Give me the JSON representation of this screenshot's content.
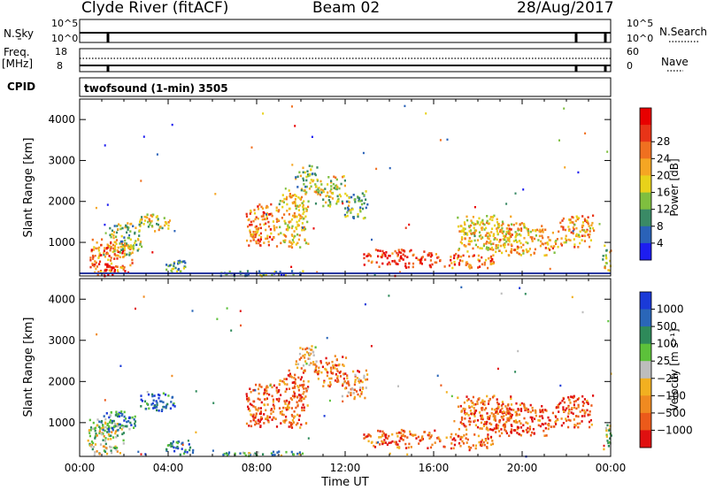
{
  "header": {
    "station": "Clyde River (fitACF)",
    "beam": "Beam 02",
    "date": "28/Aug/2017"
  },
  "top_panels": {
    "nsky_label": "N.Sky",
    "nsky_ticks": [
      "10^5",
      "10^0"
    ],
    "nsearch_label": "N.Search",
    "nsearch_ticks": [
      "10^5",
      "10^0"
    ],
    "freq_label": "Freq.",
    "freq_unit": "[MHz]",
    "freq_ticks": [
      "18",
      "8"
    ],
    "nave_label": "Nave",
    "nave_ticks": [
      "60",
      "0"
    ],
    "cpid_label": "CPID",
    "cpid_value": "twofsound (1-min) 3505"
  },
  "chart_data": [
    {
      "type": "heatmap",
      "name": "power",
      "ylabel": "Slant Range [km]",
      "y_ticks": [
        "1000",
        "2000",
        "3000",
        "4000"
      ],
      "ylim": [
        180,
        4500
      ],
      "xlim": [
        0,
        24
      ],
      "colorbar_label": "Power [dB]",
      "colorbar_ticks": [
        "4",
        "8",
        "12",
        "16",
        "20",
        "24",
        "28"
      ],
      "colors": [
        "#1d1df0",
        "#2a62b8",
        "#3a8a66",
        "#7fbf3f",
        "#e8d21a",
        "#f5a623",
        "#f07020",
        "#e83418",
        "#e80000"
      ],
      "patches": [
        {
          "t": 0.4,
          "t2": 2.4,
          "r": 200,
          "r2": 1100,
          "lvl": 0.75
        },
        {
          "t": 0.9,
          "t2": 1.6,
          "r": 200,
          "r2": 500,
          "lvl": 0.95
        },
        {
          "t": 1.2,
          "t2": 2.8,
          "r": 700,
          "r2": 1500,
          "lvl": 0.4
        },
        {
          "t": 2.6,
          "t2": 4.1,
          "r": 1300,
          "r2": 1750,
          "lvl": 0.5
        },
        {
          "t": 3.8,
          "t2": 4.8,
          "r": 250,
          "r2": 600,
          "lvl": 0.35
        },
        {
          "t": 6.3,
          "t2": 10.2,
          "r": 200,
          "r2": 330,
          "lvl": 0.3
        },
        {
          "t": 7.5,
          "t2": 8.8,
          "r": 900,
          "r2": 2000,
          "lvl": 0.7
        },
        {
          "t": 8.8,
          "t2": 10.3,
          "r": 900,
          "r2": 2300,
          "lvl": 0.55
        },
        {
          "t": 9.7,
          "t2": 10.7,
          "r": 2200,
          "r2": 2900,
          "lvl": 0.4
        },
        {
          "t": 10.6,
          "t2": 12.0,
          "r": 1900,
          "r2": 2650,
          "lvl": 0.45
        },
        {
          "t": 11.8,
          "t2": 13.0,
          "r": 1600,
          "r2": 2300,
          "lvl": 0.35
        },
        {
          "t": 12.8,
          "t2": 16.3,
          "r": 400,
          "r2": 850,
          "lvl": 0.85
        },
        {
          "t": 16.4,
          "t2": 18.7,
          "r": 380,
          "r2": 750,
          "lvl": 0.75
        },
        {
          "t": 17.0,
          "t2": 19.5,
          "r": 800,
          "r2": 1700,
          "lvl": 0.55
        },
        {
          "t": 18.3,
          "t2": 21.6,
          "r": 700,
          "r2": 1500,
          "lvl": 0.6
        },
        {
          "t": 21.5,
          "t2": 23.2,
          "r": 900,
          "r2": 1700,
          "lvl": 0.65
        },
        {
          "t": 23.6,
          "t2": 24.0,
          "r": 300,
          "r2": 1000,
          "lvl": 0.5
        }
      ]
    },
    {
      "type": "heatmap",
      "name": "velocity",
      "ylabel": "Slant Range [km]",
      "xlabel": "Time UT",
      "x_ticks": [
        "00:00",
        "04:00",
        "08:00",
        "12:00",
        "16:00",
        "20:00",
        "00:00"
      ],
      "y_ticks": [
        "1000",
        "2000",
        "3000",
        "4000"
      ],
      "ylim": [
        180,
        4500
      ],
      "xlim": [
        0,
        24
      ],
      "colorbar_label": "Velocity [m s⁻¹]",
      "colorbar_ticks": [
        "1000",
        "500",
        "100",
        "25",
        "−25",
        "−100",
        "−500",
        "−1000"
      ],
      "colors": [
        "#1a3ad8",
        "#2a66b8",
        "#2e8a5a",
        "#5cc13a",
        "#bdbdbd",
        "#f2b020",
        "#f08a20",
        "#ec5a1a",
        "#e01010"
      ],
      "patches": [
        {
          "t": 0.3,
          "t2": 2.0,
          "r": 200,
          "r2": 1100,
          "lvl": 0.5
        },
        {
          "t": 0.8,
          "t2": 2.6,
          "r": 800,
          "r2": 1300,
          "lvl": 0.25
        },
        {
          "t": 2.6,
          "t2": 4.3,
          "r": 1300,
          "r2": 1750,
          "lvl": 0.15
        },
        {
          "t": 3.8,
          "t2": 5.2,
          "r": 250,
          "r2": 600,
          "lvl": 0.2
        },
        {
          "t": 6.3,
          "t2": 10.2,
          "r": 200,
          "r2": 330,
          "lvl": 0.35
        },
        {
          "t": 7.5,
          "t2": 8.8,
          "r": 900,
          "r2": 2000,
          "lvl": 0.85
        },
        {
          "t": 8.8,
          "t2": 10.3,
          "r": 900,
          "r2": 2300,
          "lvl": 0.8
        },
        {
          "t": 9.7,
          "t2": 10.7,
          "r": 2200,
          "r2": 2900,
          "lvl": 0.6
        },
        {
          "t": 10.6,
          "t2": 12.0,
          "r": 1900,
          "r2": 2650,
          "lvl": 0.8
        },
        {
          "t": 11.8,
          "t2": 13.0,
          "r": 1600,
          "r2": 2300,
          "lvl": 0.7
        },
        {
          "t": 12.8,
          "t2": 16.3,
          "r": 400,
          "r2": 850,
          "lvl": 0.82
        },
        {
          "t": 16.4,
          "t2": 18.7,
          "r": 380,
          "r2": 750,
          "lvl": 0.8
        },
        {
          "t": 17.0,
          "t2": 19.5,
          "r": 800,
          "r2": 1700,
          "lvl": 0.82
        },
        {
          "t": 18.3,
          "t2": 21.6,
          "r": 700,
          "r2": 1500,
          "lvl": 0.85
        },
        {
          "t": 21.5,
          "t2": 23.2,
          "r": 900,
          "r2": 1700,
          "lvl": 0.85
        },
        {
          "t": 23.6,
          "t2": 24.0,
          "r": 300,
          "r2": 1000,
          "lvl": 0.45
        }
      ]
    }
  ]
}
